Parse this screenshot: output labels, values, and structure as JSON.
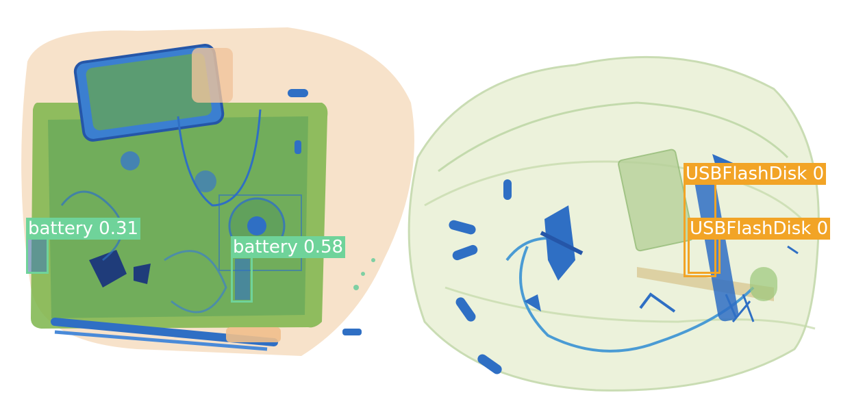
{
  "colors": {
    "battery": "#6fd39a",
    "usb_flash_disk": "#f2a426",
    "xray_green": "#67b24a",
    "xray_blue": "#2f6fc4",
    "xray_orange": "#f0bf8c",
    "background": "#ffffff"
  },
  "detections": [
    {
      "label": "battery",
      "score": "0.31",
      "class_key": "battery"
    },
    {
      "label": "battery",
      "score": "0.58",
      "class_key": "battery"
    },
    {
      "label": "USBFlashDisk",
      "score": "0",
      "class_key": "usb_flash_disk"
    },
    {
      "label": "USBFlashDisk",
      "score": "0",
      "class_key": "usb_flash_disk"
    }
  ]
}
